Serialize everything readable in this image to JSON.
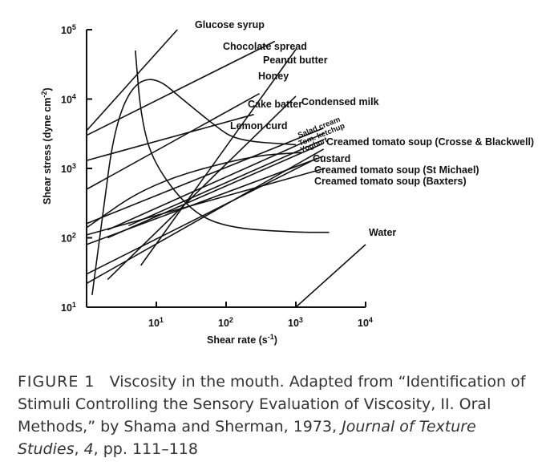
{
  "chart_data": {
    "type": "line",
    "xlabel": "Shear rate",
    "xunit": "(s",
    "xunit_exp": "-1",
    "xunit_close": ")",
    "ylabel": "Shear stress",
    "yunit": "(dyne cm",
    "yunit_exp": "-2",
    "yunit_close": ")",
    "x_scale": "log",
    "y_scale": "log",
    "xlim": [
      1,
      10000
    ],
    "ylim": [
      10,
      100000
    ],
    "x_ticks": [
      {
        "base": "10",
        "exp": "1",
        "value": 10
      },
      {
        "base": "10",
        "exp": "2",
        "value": 100
      },
      {
        "base": "10",
        "exp": "3",
        "value": 1000
      },
      {
        "base": "10",
        "exp": "4",
        "value": 10000
      }
    ],
    "y_ticks": [
      {
        "base": "10",
        "exp": "1",
        "value": 10
      },
      {
        "base": "10",
        "exp": "2",
        "value": 100
      },
      {
        "base": "10",
        "exp": "3",
        "value": 1000
      },
      {
        "base": "10",
        "exp": "4",
        "value": 10000
      },
      {
        "base": "10",
        "exp": "5",
        "value": 100000
      }
    ],
    "grid": false,
    "series": [
      {
        "name": "Glucose syrup",
        "points": [
          [
            1,
            3500
          ],
          [
            20,
            100000
          ]
        ]
      },
      {
        "name": "Chocolate spread",
        "points": [
          [
            1,
            3000
          ],
          [
            500,
            68000
          ]
        ]
      },
      {
        "name": "Peanut butter",
        "points": [
          [
            1.2,
            15
          ],
          [
            3.5,
            50000
          ],
          [
            70,
            4000
          ],
          [
            150,
            2500
          ],
          [
            1000,
            2200
          ]
        ]
      },
      {
        "name": "Honey",
        "points": [
          [
            6,
            40
          ],
          [
            1000,
            52000
          ]
        ]
      },
      {
        "name": "Cake batter",
        "points": [
          [
            1,
            500
          ],
          [
            300,
            12000
          ]
        ]
      },
      {
        "name": "Lemon curd",
        "points": [
          [
            1,
            1300
          ],
          [
            250,
            6000
          ]
        ]
      },
      {
        "name": "Condensed milk",
        "points": [
          [
            2,
            25
          ],
          [
            1000,
            11000
          ]
        ]
      },
      {
        "name": "Salad cream",
        "points": [
          [
            1,
            160
          ],
          [
            2500,
            3800
          ]
        ]
      },
      {
        "name": "Tom. ketchup",
        "points": [
          [
            2,
            130
          ],
          [
            2500,
            3200
          ]
        ]
      },
      {
        "name": "Yoghurt",
        "points": [
          [
            4,
            150
          ],
          [
            2500,
            2600
          ]
        ]
      },
      {
        "name": "Creamed tomato soup (Crosse & Blackwell)",
        "points": [
          [
            2,
            100
          ],
          [
            2500,
            2300
          ]
        ]
      },
      {
        "name": "Custard",
        "points": [
          [
            1,
            22
          ],
          [
            2500,
            1900
          ]
        ]
      },
      {
        "name": "Creamed tomato soup (St Michael)",
        "points": [
          [
            1,
            80
          ],
          [
            2500,
            1500
          ]
        ]
      },
      {
        "name": "Creamed tomato soup (Baxters)",
        "points": [
          [
            1,
            110
          ],
          [
            2600,
            1000
          ]
        ]
      },
      {
        "name": "Water",
        "points": [
          [
            1000,
            10
          ],
          [
            10000,
            80
          ]
        ]
      },
      {
        "name": "",
        "points": [
          [
            5,
            50000
          ],
          [
            6,
            5500
          ],
          [
            9,
            1200
          ],
          [
            30,
            250
          ],
          [
            100,
            140
          ],
          [
            1000,
            120
          ],
          [
            3000,
            120
          ]
        ]
      },
      {
        "name": "",
        "points": [
          [
            1,
            140
          ],
          [
            8,
            600
          ],
          [
            200,
            1500
          ],
          [
            1200,
            1700
          ]
        ]
      },
      {
        "name": "",
        "points": [
          [
            1,
            30
          ],
          [
            2000,
            1400
          ]
        ]
      }
    ]
  },
  "caption": {
    "figure_label": "FIGURE 1",
    "text_1": "Viscosity in the mouth. Adapted from “Identification of Stimuli Controlling the Sensory Evaluation of Viscosity, II. Oral Methods,” by Shama and Sherman, 1973, ",
    "journal": "Journal of Texture Studies",
    "text_2": ", ",
    "volume": "4",
    "text_3": ", pp. 111–118"
  }
}
